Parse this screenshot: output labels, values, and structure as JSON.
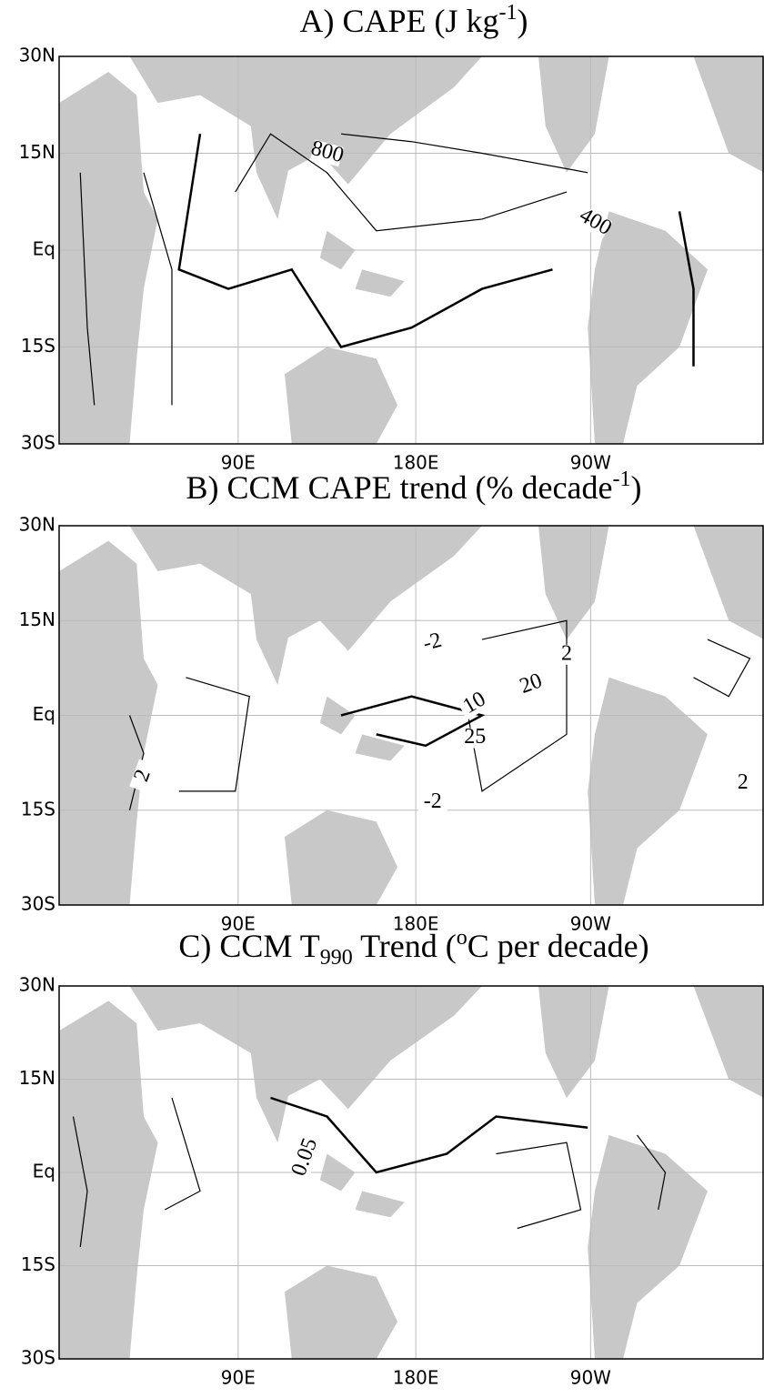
{
  "panels": [
    {
      "title": {
        "main": "A) CAPE (J kg",
        "sup": "-1",
        "end": ")"
      },
      "yticks": [
        "30N",
        "15N",
        "Eq",
        "15S",
        "30S"
      ],
      "xticks": [
        "90E",
        "180E",
        "90W"
      ],
      "contour_labels": [
        "800",
        "400"
      ]
    },
    {
      "title": {
        "main": "B) CCM CAPE trend (% decade",
        "sup": "-1",
        "end": ")"
      },
      "yticks": [
        "30N",
        "15N",
        "Eq",
        "15S",
        "30S"
      ],
      "xticks": [
        "90E",
        "180E",
        "90W"
      ],
      "contour_labels": [
        "-2",
        "-2",
        "2",
        "2",
        "10",
        "20",
        "25",
        "2"
      ]
    },
    {
      "title": {
        "main": "C) CCM T",
        "sub": "990",
        "end": " Trend (",
        "sup": "o",
        "end2": "C per decade)"
      },
      "yticks": [
        "30N",
        "15N",
        "Eq",
        "15S",
        "30S"
      ],
      "xticks": [
        "90E",
        "180E",
        "90W"
      ],
      "contour_labels": [
        "0.05"
      ]
    }
  ]
}
